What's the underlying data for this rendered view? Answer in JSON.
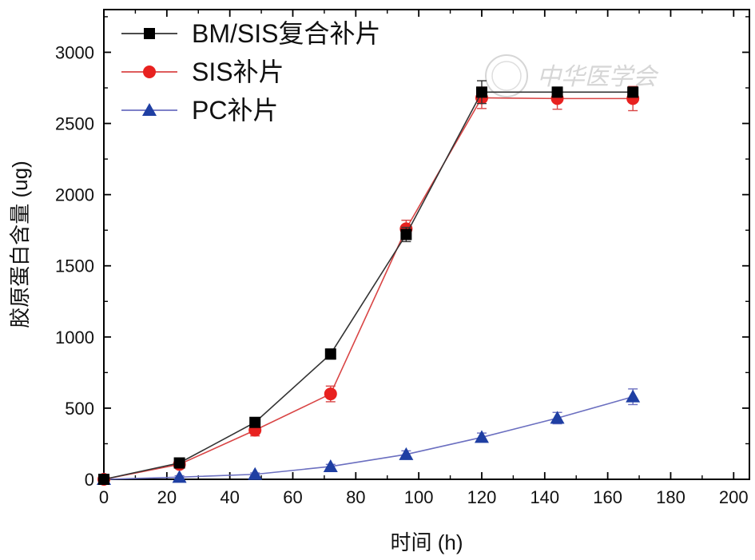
{
  "chart_data": {
    "type": "line",
    "title": "",
    "xlabel": "时间 (h)",
    "ylabel": "胶原蛋白含量 (ug)",
    "xlim": [
      0,
      205
    ],
    "ylim": [
      0,
      3300
    ],
    "xticks": [
      0,
      20,
      40,
      60,
      80,
      100,
      120,
      140,
      160,
      180,
      200
    ],
    "yticks": [
      0,
      500,
      1000,
      1500,
      2000,
      2500,
      3000
    ],
    "x": [
      0,
      24,
      48,
      72,
      96,
      120,
      144,
      168
    ],
    "legend_position": "top-left",
    "series": [
      {
        "name": "BM/SIS复合补片",
        "marker": "square",
        "color": "#000000",
        "line_color": "#333333",
        "values": [
          0,
          115,
          400,
          880,
          1720,
          2720,
          2720,
          2720
        ],
        "errors": [
          0,
          20,
          25,
          35,
          50,
          80,
          35,
          35
        ]
      },
      {
        "name": "SIS补片",
        "marker": "circle",
        "color": "#e8211f",
        "line_color": "#d94545",
        "values": [
          0,
          105,
          345,
          600,
          1760,
          2680,
          2675,
          2675
        ],
        "errors": [
          0,
          20,
          40,
          55,
          60,
          75,
          75,
          85
        ]
      },
      {
        "name": "PC补片",
        "marker": "triangle",
        "color": "#1f3fa3",
        "line_color": "#6b6fc0",
        "values": [
          0,
          15,
          35,
          90,
          175,
          295,
          430,
          580
        ],
        "errors": [
          0,
          10,
          10,
          15,
          25,
          30,
          40,
          55
        ]
      }
    ]
  },
  "watermark": {
    "text": "中华医学会",
    "color": "#d6d6d6"
  }
}
